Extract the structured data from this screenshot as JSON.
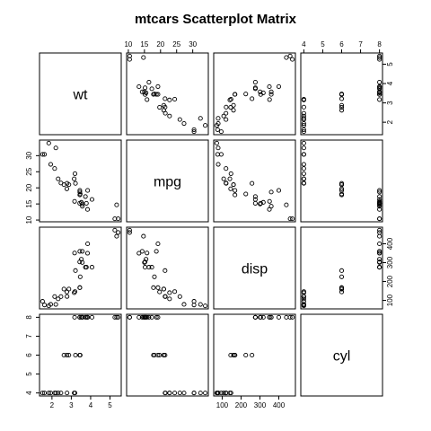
{
  "chart_data": {
    "type": "scatter",
    "title": "mtcars Scatterplot Matrix",
    "variables": [
      "wt",
      "mpg",
      "disp",
      "cyl"
    ],
    "axes": {
      "wt": {
        "range": [
          1.513,
          5.424
        ],
        "ticks": [
          2,
          3,
          4,
          5
        ]
      },
      "mpg": {
        "range": [
          10.4,
          33.9
        ],
        "ticks": [
          10,
          15,
          20,
          25,
          30
        ]
      },
      "disp": {
        "range": [
          71.1,
          472.0
        ],
        "ticks": [
          100,
          200,
          300,
          400
        ]
      },
      "cyl": {
        "range": [
          4,
          8
        ],
        "ticks": [
          4,
          5,
          6,
          7,
          8
        ]
      }
    },
    "tick_placement": {
      "top": [
        "mpg",
        "cyl"
      ],
      "bottom": [
        "wt",
        "disp"
      ],
      "left": [
        "mpg",
        "cyl"
      ],
      "right": [
        "wt",
        "disp"
      ]
    },
    "grid": false,
    "marker": "open-circle",
    "points": {
      "wt": [
        2.62,
        2.875,
        2.32,
        3.215,
        3.44,
        3.46,
        3.57,
        3.19,
        3.15,
        3.44,
        3.44,
        4.07,
        3.73,
        3.78,
        5.25,
        5.424,
        5.345,
        2.2,
        1.615,
        1.835,
        2.465,
        3.52,
        3.435,
        3.84,
        3.845,
        1.935,
        2.14,
        1.513,
        3.17,
        2.77,
        3.57,
        2.78
      ],
      "mpg": [
        21.0,
        21.0,
        22.8,
        21.4,
        18.7,
        18.1,
        14.3,
        24.4,
        22.8,
        19.2,
        17.8,
        16.4,
        17.3,
        15.2,
        10.4,
        10.4,
        14.7,
        32.4,
        30.4,
        33.9,
        21.5,
        15.5,
        15.2,
        13.3,
        19.2,
        27.3,
        26.0,
        30.4,
        15.8,
        19.7,
        15.0,
        21.4
      ],
      "disp": [
        160.0,
        160.0,
        108.0,
        258.0,
        360.0,
        225.0,
        360.0,
        146.7,
        140.8,
        167.6,
        167.6,
        275.8,
        275.8,
        275.8,
        472.0,
        460.0,
        440.0,
        78.7,
        75.7,
        71.1,
        120.1,
        318.0,
        304.0,
        350.0,
        400.0,
        79.0,
        120.3,
        95.1,
        351.0,
        145.0,
        301.0,
        121.0
      ],
      "cyl": [
        6,
        6,
        4,
        6,
        8,
        6,
        8,
        4,
        4,
        6,
        6,
        8,
        8,
        8,
        8,
        8,
        8,
        4,
        4,
        4,
        4,
        8,
        8,
        8,
        8,
        4,
        4,
        4,
        8,
        6,
        8,
        4
      ]
    }
  }
}
